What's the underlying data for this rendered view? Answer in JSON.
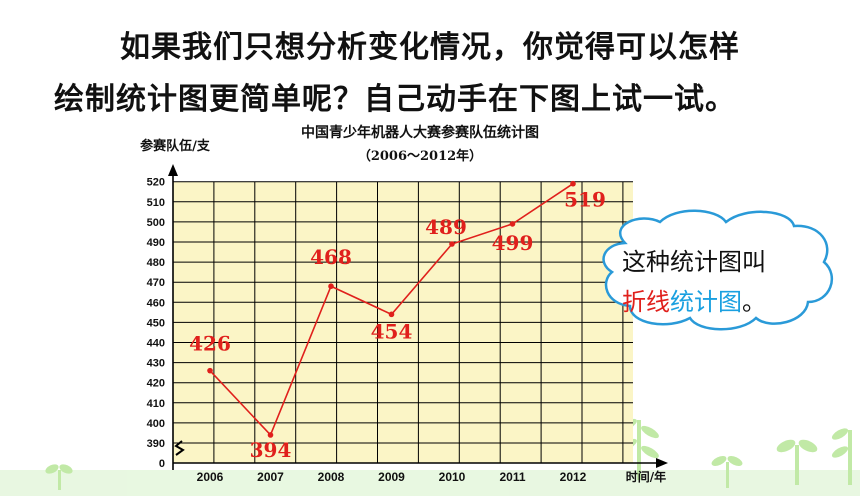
{
  "prompt": {
    "line1": "如果我们只想分析变化情况，你觉得可以怎样",
    "line2": "绘制统计图更简单呢？自己动手在下图上试一试。"
  },
  "chart_data": {
    "type": "line",
    "title": "中国青少年机器人大赛参赛队伍统计图",
    "subtitle": "（2006～2012年）",
    "ylabel": "参赛队伍/支",
    "xlabel": "时间/年",
    "categories": [
      "2006",
      "2007",
      "2008",
      "2009",
      "2010",
      "2011",
      "2012"
    ],
    "values": [
      426,
      394,
      468,
      454,
      489,
      499,
      519
    ],
    "y_ticks": [
      "520",
      "510",
      "500",
      "490",
      "480",
      "470",
      "460",
      "450",
      "440",
      "430",
      "420",
      "410",
      "400",
      "390",
      "0"
    ],
    "ylim": [
      390,
      520
    ],
    "axis_break": true,
    "grid": true,
    "colors": {
      "line": "#e0201c",
      "grid_bg": "#fbf5c6",
      "grid_line": "#000000"
    }
  },
  "callout": {
    "line1": "这种统计图叫",
    "term_a": "折线",
    "term_b": "统计图",
    "end": "。"
  }
}
